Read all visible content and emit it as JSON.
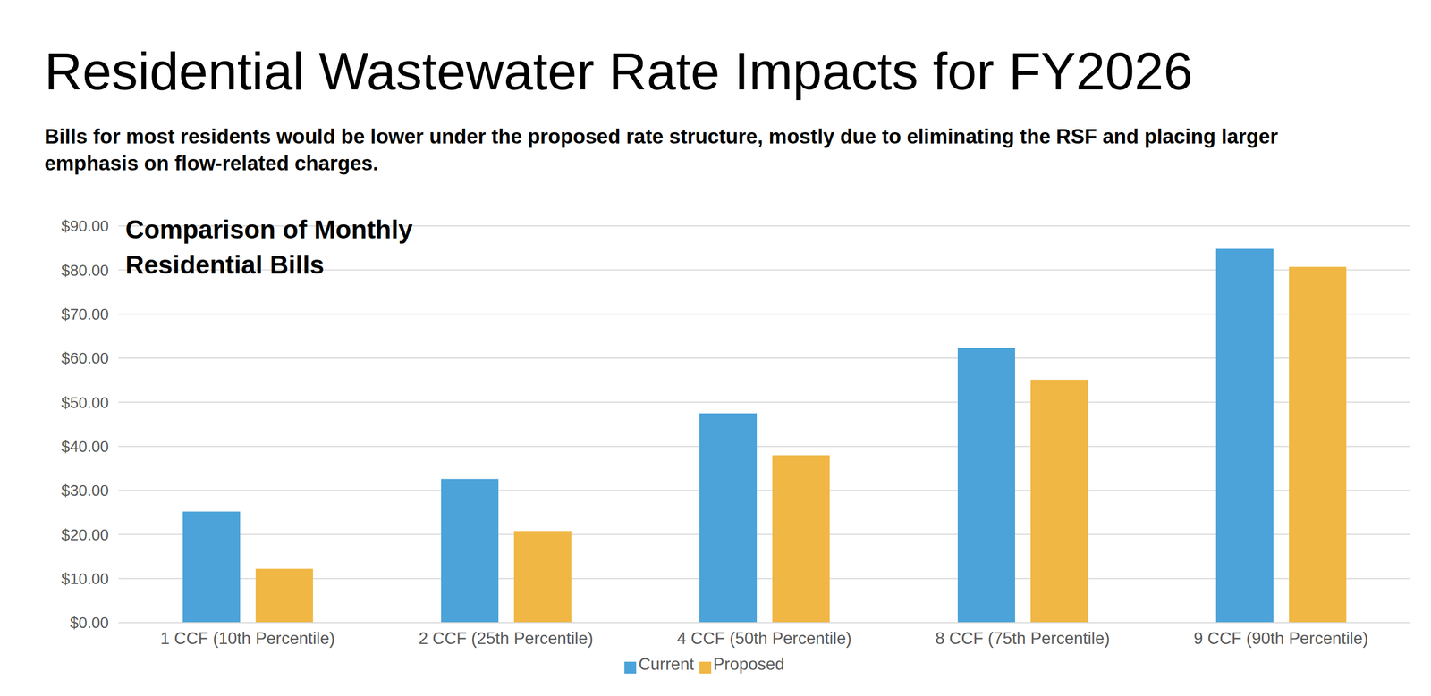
{
  "chart_data": {
    "type": "bar",
    "title": "Residential Wastewater Rate Impacts for FY2026",
    "subtitle": "Bills for most residents would be lower under the proposed rate structure, mostly due to eliminating the RSF and placing larger emphasis on flow-related charges.",
    "plot_title": "Comparison of Monthly Residential Bills",
    "categories": [
      "1 CCF (10th Percentile)",
      "2 CCF (25th Percentile)",
      "4 CCF (50th Percentile)",
      "8 CCF (75th Percentile)",
      "9 CCF (90th Percentile)"
    ],
    "series": [
      {
        "name": "Current",
        "color": "#4ba3d9",
        "values": [
          25.2,
          32.6,
          47.5,
          62.3,
          84.8
        ]
      },
      {
        "name": "Proposed",
        "color": "#f0b744",
        "values": [
          12.2,
          20.8,
          38.0,
          55.1,
          80.7
        ]
      }
    ],
    "ylim": [
      0,
      90
    ],
    "yticks": [
      {
        "value": 0,
        "label": "$0.00"
      },
      {
        "value": 10,
        "label": "$10.00"
      },
      {
        "value": 20,
        "label": "$20.00"
      },
      {
        "value": 30,
        "label": "$30.00"
      },
      {
        "value": 40,
        "label": "$40.00"
      },
      {
        "value": 50,
        "label": "$50.00"
      },
      {
        "value": 60,
        "label": "$60.00"
      },
      {
        "value": 70,
        "label": "$70.00"
      },
      {
        "value": 80,
        "label": "$80.00"
      },
      {
        "value": 90,
        "label": "$90.00"
      }
    ],
    "grid": true,
    "legend": "bottom"
  }
}
